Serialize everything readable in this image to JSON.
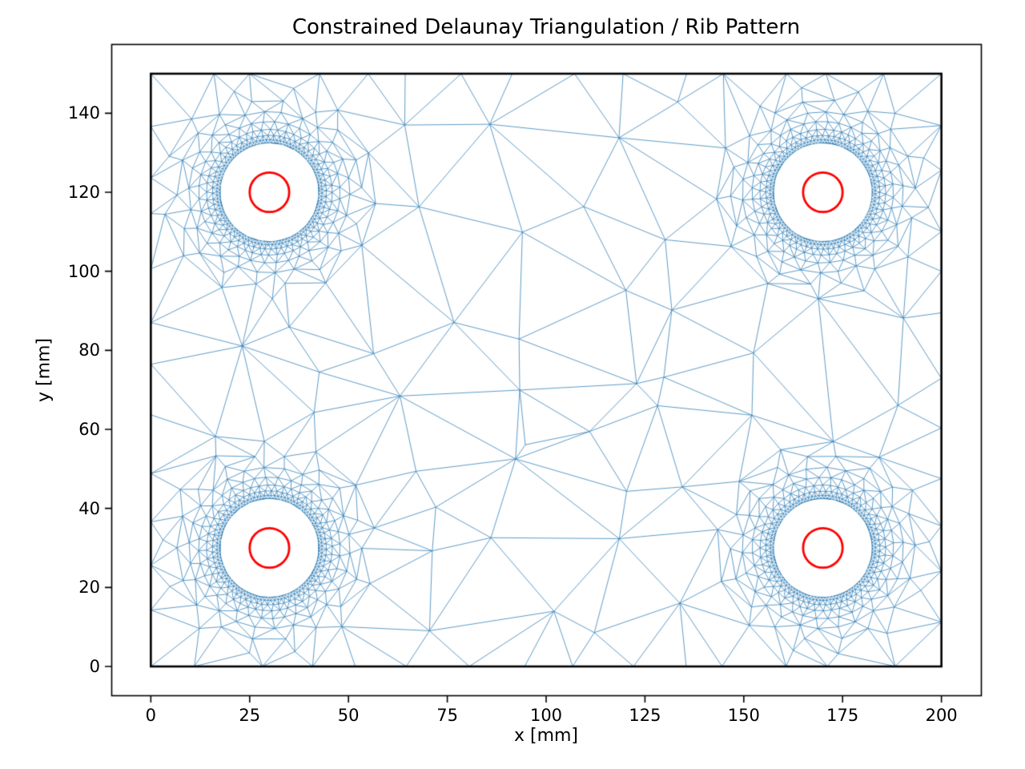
{
  "chart_data": {
    "type": "triangulation",
    "title": "Constrained Delaunay Triangulation / Rib Pattern",
    "xlabel": "x [mm]",
    "ylabel": "y [mm]",
    "xticks": [
      0,
      25,
      50,
      75,
      100,
      125,
      150,
      175,
      200
    ],
    "yticks": [
      0,
      20,
      40,
      60,
      80,
      100,
      120,
      140
    ],
    "xlim": [
      -10,
      210
    ],
    "ylim": [
      -7.5,
      157.5
    ],
    "grid": false,
    "legend": "none",
    "plate_outline": {
      "x0": 0,
      "y0": 0,
      "x1": 200,
      "y1": 150
    },
    "holes": {
      "centers": [
        [
          30,
          30
        ],
        [
          170,
          30
        ],
        [
          30,
          120
        ],
        [
          170,
          120
        ]
      ],
      "circle_radius_mm": 5,
      "mesh_hole_radius_mm": 12.5
    },
    "mesh": {
      "ring_radii_mm": [
        12.5,
        13.3,
        14.4,
        15.9,
        17.9,
        20.4,
        23.4,
        27.0
      ],
      "ring_point_counts": [
        96,
        96,
        64,
        48,
        36,
        26,
        18,
        13
      ],
      "boundary_spacing_mm": 13,
      "interior_grid": {
        "x0": 16,
        "dx": 24,
        "nx": 8,
        "y0": 14,
        "dy": 24.4,
        "ny": 6,
        "jitter_mm": 8.5
      },
      "extra_random_points": 14,
      "edge_margin_mm": 7,
      "hole_clearance_mm": 29.5,
      "seed": 11
    },
    "colors": {
      "mesh_line": "#2e7db6",
      "plate_outline": "#000000",
      "hole_circle": "#ff0000",
      "axes_spine": "#000000",
      "background": "#ffffff",
      "text": "#000000"
    },
    "style": {
      "mesh_linewidth": 0.85,
      "mesh_alpha": 0.9,
      "plate_linewidth": 2.6,
      "circle_linewidth": 2.8,
      "spine_linewidth": 1.6,
      "tick_length": 8
    }
  }
}
